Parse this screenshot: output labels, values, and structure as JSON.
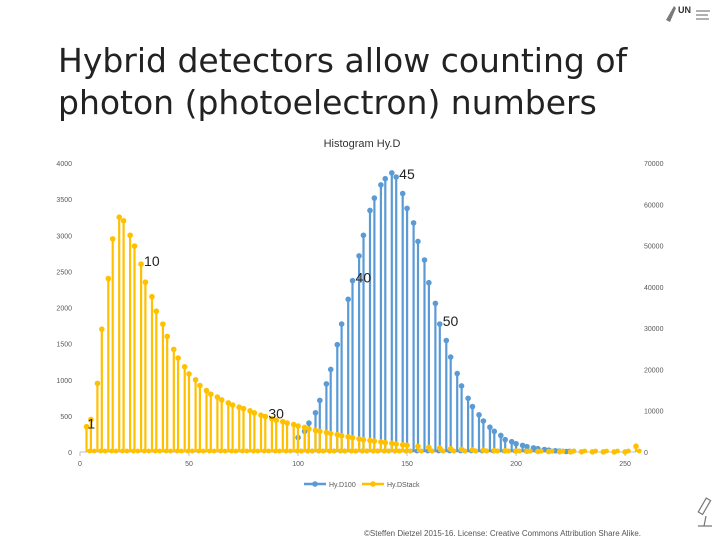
{
  "slide": {
    "title_line1": "Hybrid detectors allow counting of",
    "title_line2": "photon (photoelectron) numbers",
    "credit": "©Steffen Dietzel 2015-16. License: Creative Commons Attribution Share Alike.",
    "logo_text": "UN"
  },
  "colors": {
    "hyd100": "#5b9bd5",
    "hydstack": "#ffc000",
    "axis": "#bfbfbf",
    "text": "#595959"
  },
  "chart_data": {
    "type": "line",
    "title": "Histogram Hy.D",
    "x_ticks": [
      0,
      50,
      100,
      150,
      200,
      250
    ],
    "xlim": [
      0,
      255
    ],
    "y_left": {
      "ticks": [
        0,
        500,
        1000,
        1500,
        2000,
        2500,
        3000,
        3500,
        4000
      ],
      "lim": [
        0,
        4000
      ]
    },
    "y_right": {
      "ticks": [
        0,
        10000,
        20000,
        30000,
        40000,
        50000,
        60000,
        70000
      ],
      "lim": [
        0,
        70000
      ]
    },
    "grid": false,
    "legend_position": "bottom",
    "style": "spikes with point markers",
    "series": [
      {
        "name": "Hy.D100",
        "axis": "right",
        "color": "#5b9bd5",
        "peaks": [
          [
            100,
            3500
          ],
          [
            103,
            5000
          ],
          [
            105,
            7000
          ],
          [
            108,
            9500
          ],
          [
            110,
            12500
          ],
          [
            113,
            16500
          ],
          [
            115,
            20000
          ],
          [
            118,
            26000
          ],
          [
            120,
            31000
          ],
          [
            123,
            37000
          ],
          [
            125,
            41500
          ],
          [
            128,
            47500
          ],
          [
            130,
            52500
          ],
          [
            133,
            58500
          ],
          [
            135,
            61500
          ],
          [
            138,
            64700
          ],
          [
            140,
            66200
          ],
          [
            143,
            67600
          ],
          [
            145,
            66600
          ],
          [
            148,
            62600
          ],
          [
            150,
            59000
          ],
          [
            153,
            55500
          ],
          [
            155,
            51000
          ],
          [
            158,
            46500
          ],
          [
            160,
            41000
          ],
          [
            163,
            36000
          ],
          [
            165,
            31000
          ],
          [
            168,
            27000
          ],
          [
            170,
            23000
          ],
          [
            173,
            19000
          ],
          [
            175,
            16000
          ],
          [
            178,
            13000
          ],
          [
            180,
            11000
          ],
          [
            183,
            9000
          ],
          [
            185,
            7500
          ],
          [
            188,
            6000
          ],
          [
            190,
            5000
          ],
          [
            193,
            4000
          ],
          [
            195,
            3000
          ],
          [
            198,
            2500
          ],
          [
            200,
            2000
          ],
          [
            203,
            1600
          ],
          [
            205,
            1300
          ],
          [
            208,
            1000
          ],
          [
            210,
            800
          ],
          [
            213,
            600
          ],
          [
            215,
            450
          ],
          [
            218,
            300
          ],
          [
            220,
            200
          ],
          [
            223,
            120
          ],
          [
            225,
            60
          ]
        ]
      },
      {
        "name": "Hy.DStack",
        "axis": "left",
        "color": "#ffc000",
        "peaks": [
          [
            3,
            350
          ],
          [
            5,
            450
          ],
          [
            8,
            950
          ],
          [
            10,
            1700
          ],
          [
            13,
            2400
          ],
          [
            15,
            2950
          ],
          [
            18,
            3250
          ],
          [
            20,
            3200
          ],
          [
            23,
            3000
          ],
          [
            25,
            2850
          ],
          [
            28,
            2600
          ],
          [
            30,
            2350
          ],
          [
            33,
            2150
          ],
          [
            35,
            1950
          ],
          [
            38,
            1770
          ],
          [
            40,
            1600
          ],
          [
            43,
            1420
          ],
          [
            45,
            1300
          ],
          [
            48,
            1180
          ],
          [
            50,
            1080
          ],
          [
            53,
            1000
          ],
          [
            55,
            920
          ],
          [
            58,
            850
          ],
          [
            60,
            800
          ],
          [
            63,
            760
          ],
          [
            65,
            720
          ],
          [
            68,
            680
          ],
          [
            70,
            650
          ],
          [
            73,
            620
          ],
          [
            75,
            600
          ],
          [
            78,
            570
          ],
          [
            80,
            540
          ],
          [
            83,
            510
          ],
          [
            85,
            490
          ],
          [
            88,
            460
          ],
          [
            90,
            440
          ],
          [
            93,
            420
          ],
          [
            95,
            400
          ],
          [
            98,
            380
          ],
          [
            100,
            360
          ],
          [
            103,
            340
          ],
          [
            105,
            320
          ],
          [
            108,
            300
          ],
          [
            110,
            285
          ],
          [
            113,
            270
          ],
          [
            115,
            255
          ],
          [
            118,
            240
          ],
          [
            120,
            225
          ],
          [
            123,
            210
          ],
          [
            125,
            195
          ],
          [
            128,
            180
          ],
          [
            130,
            170
          ],
          [
            133,
            160
          ],
          [
            135,
            150
          ],
          [
            138,
            140
          ],
          [
            140,
            130
          ],
          [
            143,
            120
          ],
          [
            145,
            110
          ],
          [
            148,
            100
          ],
          [
            150,
            92
          ],
          [
            155,
            78
          ],
          [
            160,
            65
          ],
          [
            165,
            55
          ],
          [
            170,
            45
          ],
          [
            175,
            36
          ],
          [
            180,
            30
          ],
          [
            185,
            25
          ],
          [
            190,
            20
          ],
          [
            195,
            16
          ],
          [
            200,
            13
          ],
          [
            205,
            10
          ],
          [
            210,
            8
          ],
          [
            215,
            6
          ],
          [
            220,
            5
          ],
          [
            225,
            4
          ],
          [
            230,
            3
          ],
          [
            235,
            2
          ],
          [
            240,
            2
          ],
          [
            245,
            1
          ],
          [
            250,
            1
          ],
          [
            255,
            80
          ]
        ]
      }
    ],
    "annotations": [
      {
        "text": "45",
        "x": 145,
        "series": "Hy.D100"
      },
      {
        "text": "50",
        "x": 165,
        "series": "Hy.D100"
      },
      {
        "text": "40",
        "x": 125,
        "series": "Hy.D100"
      },
      {
        "text": "10",
        "x": 28,
        "series": "Hy.DStack"
      },
      {
        "text": "30",
        "x": 85,
        "series": "Hy.DStack"
      },
      {
        "text": "1",
        "x": 2,
        "series": "Hy.DStack"
      }
    ]
  }
}
